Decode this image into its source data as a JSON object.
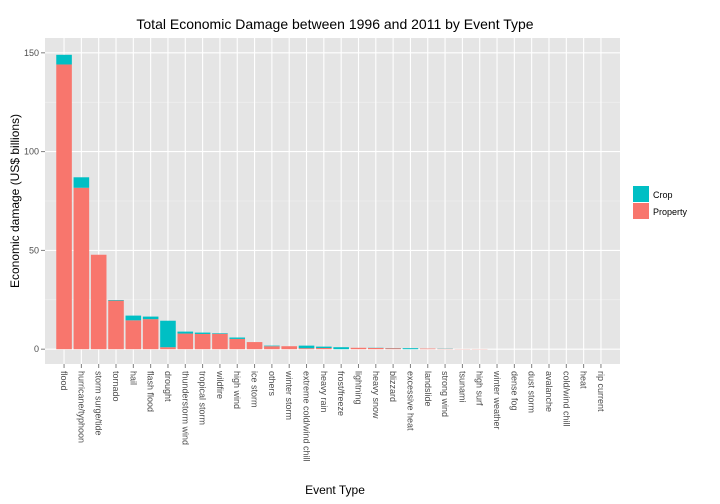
{
  "chart_data": {
    "type": "bar",
    "stacked": true,
    "title": "Total Economic Damage between 1996 and 2011 by Event Type",
    "xlabel": "Event Type",
    "ylabel": "Economic damage (US$ billions)",
    "ylim": [
      0,
      150
    ],
    "yticks": [
      0,
      50,
      100,
      150
    ],
    "grid": true,
    "legend_position": "right",
    "categories": [
      "flood",
      "hurricane/typhoon",
      "storm surge/tide",
      "tornado",
      "hail",
      "flash flood",
      "drought",
      "thunderstorm wind",
      "tropical storm",
      "wildfire",
      "high wind",
      "ice storm",
      "others",
      "winter storm",
      "extreme cold/wind chill",
      "heavy rain",
      "frost/freeze",
      "lightning",
      "heavy snow",
      "blizzard",
      "excessive heat",
      "landslide",
      "strong wind",
      "tsunami",
      "high surf",
      "winter weather",
      "dense fog",
      "dust storm",
      "avalanche",
      "cold/wind chill",
      "heat",
      "rip current"
    ],
    "series": [
      {
        "name": "Property",
        "color": "#F8766D",
        "values": [
          144.1,
          81.7,
          47.8,
          24.6,
          14.6,
          15.2,
          1.0,
          7.9,
          7.7,
          7.8,
          5.2,
          3.6,
          1.5,
          1.5,
          0.5,
          0.6,
          0.0,
          0.7,
          0.6,
          0.5,
          0.0,
          0.3,
          0.2,
          0.1,
          0.1,
          0.0,
          0.0,
          0.0,
          0.0,
          0.0,
          0.0,
          0.0
        ]
      },
      {
        "name": "Crop",
        "color": "#00BFC4",
        "values": [
          4.9,
          5.3,
          0.0,
          0.3,
          2.4,
          1.3,
          13.4,
          1.0,
          0.7,
          0.3,
          0.7,
          0.0,
          0.3,
          0.0,
          1.3,
          0.7,
          1.0,
          0.0,
          0.1,
          0.1,
          0.5,
          0.0,
          0.1,
          0.0,
          0.0,
          0.0,
          0.0,
          0.0,
          0.0,
          0.0,
          0.0,
          0.0
        ]
      }
    ],
    "legend": [
      {
        "label": "Crop",
        "color": "#00BFC4"
      },
      {
        "label": "Property",
        "color": "#F8766D"
      }
    ]
  }
}
